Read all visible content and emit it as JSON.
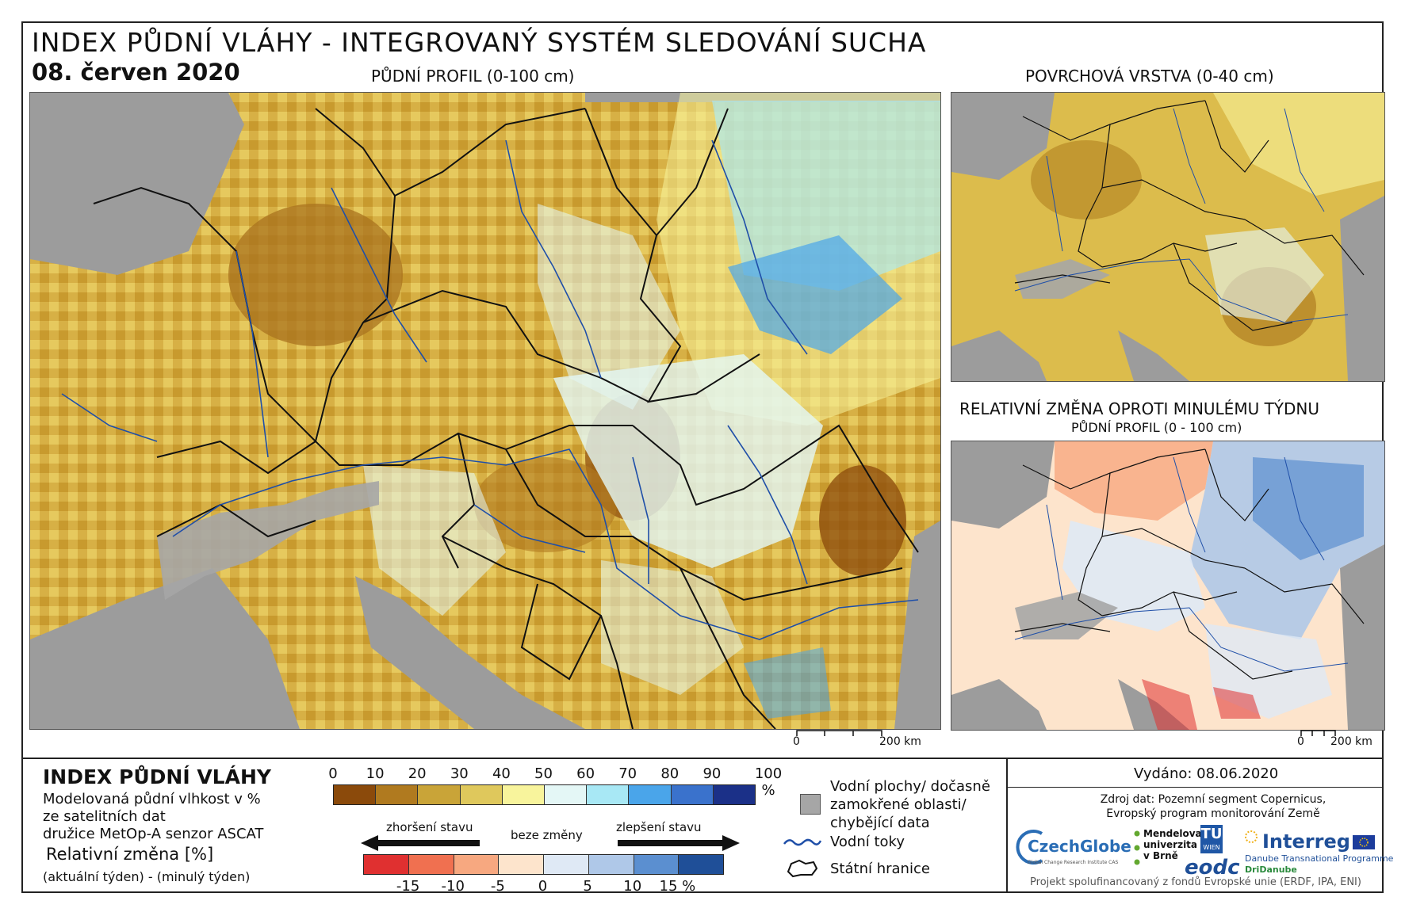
{
  "header": {
    "title": "INDEX PŮDNÍ VLÁHY - INTEGROVANÝ SYSTÉM SLEDOVÁNÍ SUCHA",
    "date": "08. červen 2020"
  },
  "maps": {
    "main": {
      "title": "PŮDNÍ PROFIL (0-100 cm)",
      "scale_zero": "0",
      "scale_end": "200 km"
    },
    "surface": {
      "title": "POVRCHOVÁ VRSTVA (0-40 cm)"
    },
    "change": {
      "title": "RELATIVNÍ ZMĚNA OPROTI MINULÉMU TÝDNU",
      "subtitle": "PŮDNÍ PROFIL (0 - 100 cm)",
      "scale_zero": "0",
      "scale_end": "200 km"
    }
  },
  "legend": {
    "title": "INDEX PŮDNÍ VLÁHY",
    "description_lines": [
      "Modelovaná půdní vlhkost v %",
      "ze satelitních dat",
      "družice MetOp-A senzor ASCAT"
    ],
    "change_title": "Relativní změna [%]",
    "change_subtitle": "(aktuální týden) - (minulý týden)",
    "moisture_ticks": [
      "0",
      "10",
      "20",
      "30",
      "40",
      "50",
      "60",
      "70",
      "80",
      "90",
      "100 %"
    ],
    "moisture_colors": [
      "#8b4a0b",
      "#b07a1f",
      "#c9a438",
      "#dfc85c",
      "#f8f49c",
      "#e4f7f6",
      "#a8e8f5",
      "#4aa5ea",
      "#3a72cc",
      "#1b3088"
    ],
    "change_ticks": [
      "-15",
      "-10",
      "-5",
      "0",
      "5",
      "10",
      "15 %"
    ],
    "change_colors": [
      "#e03030",
      "#f07050",
      "#f7a880",
      "#fde4cc",
      "#dfe9f5",
      "#afc8e8",
      "#5b8fd0",
      "#1f4f98"
    ],
    "arrow_worse": "zhoršení stavu",
    "arrow_none": "beze změny",
    "arrow_better": "zlepšení stavu",
    "symbols": {
      "water_lines": [
        "Vodní plochy/ dočasně",
        "zamokřené oblasti/",
        "chybějící data"
      ],
      "rivers": "Vodní toky",
      "borders": "Státní hranice"
    }
  },
  "info": {
    "issued": "Vydáno: 08.06.2020",
    "source_lines": [
      "Zdroj dat: Pozemní segment Copernicus,",
      "Evropský program monitorování Země"
    ],
    "logos": {
      "czechglobe": "CzechGlobe",
      "czechglobe_sub": "Global Change Research Institute CAS",
      "mendel": [
        "Mendelova",
        "univerzita",
        "v Brně"
      ],
      "tu": "TU",
      "tu_sub": "WIEN",
      "eodc": "eodc",
      "interreg": "Interreg",
      "interreg_sub1": "Danube Transnational Programme",
      "interreg_sub2": "DriDanube"
    },
    "footer": "Projekt spolufinancovaný z fondů Evropské unie (ERDF, IPA, ENI)"
  }
}
